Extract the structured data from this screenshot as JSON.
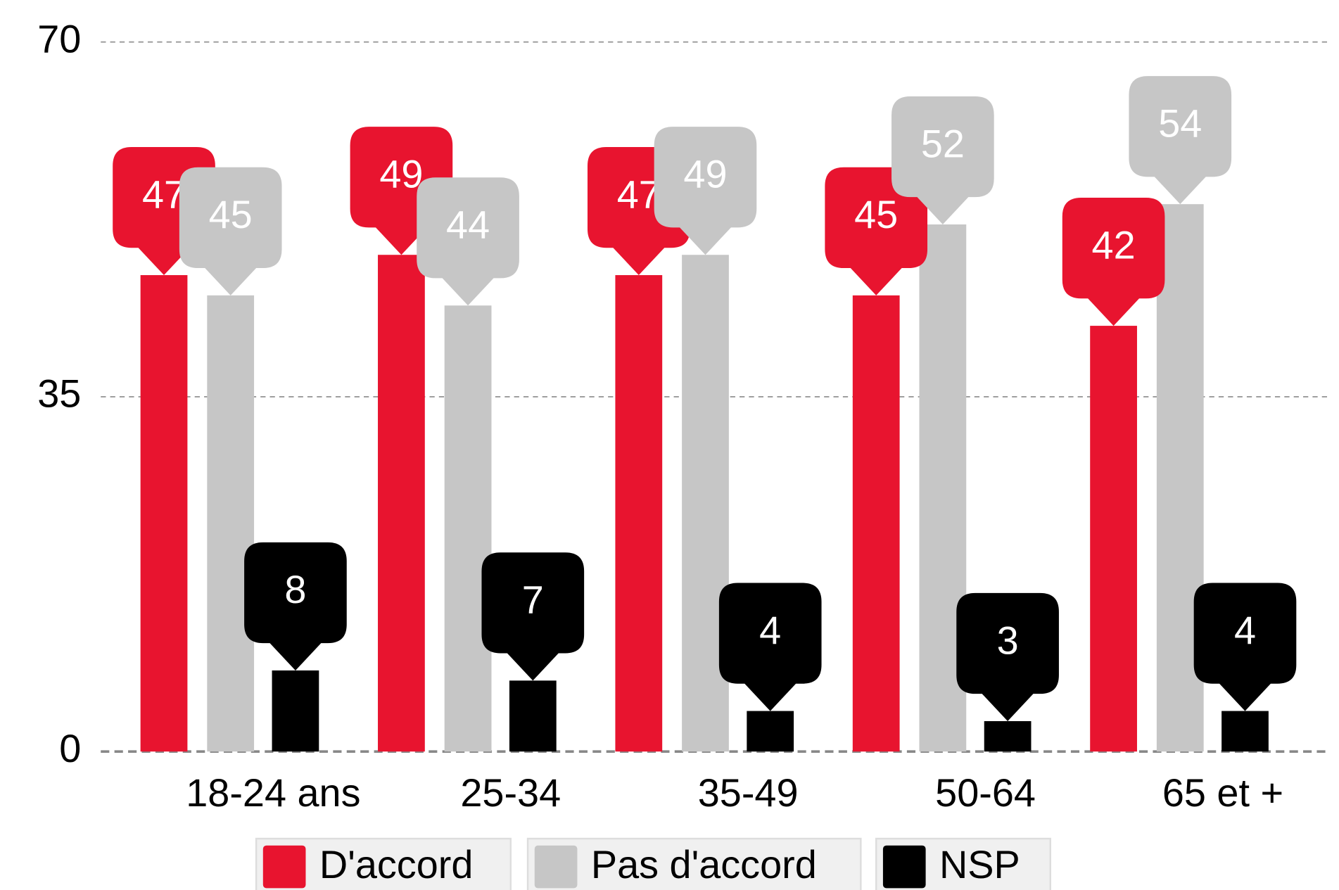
{
  "chart_data": {
    "type": "bar",
    "categories": [
      "18-24 ans",
      "25-34",
      "35-49",
      "50-64",
      "65 et +"
    ],
    "series": [
      {
        "name": "D'accord",
        "color": "#e8142f",
        "values": [
          47,
          49,
          47,
          45,
          42
        ]
      },
      {
        "name": "Pas d'accord",
        "color": "#c6c6c6",
        "values": [
          45,
          44,
          49,
          52,
          54
        ]
      },
      {
        "name": "NSP",
        "color": "#000000",
        "values": [
          8,
          7,
          4,
          3,
          4
        ]
      }
    ],
    "ylim": [
      0,
      70
    ],
    "yticks": [
      0,
      35,
      70
    ],
    "grid": true,
    "legend": "bottom"
  }
}
